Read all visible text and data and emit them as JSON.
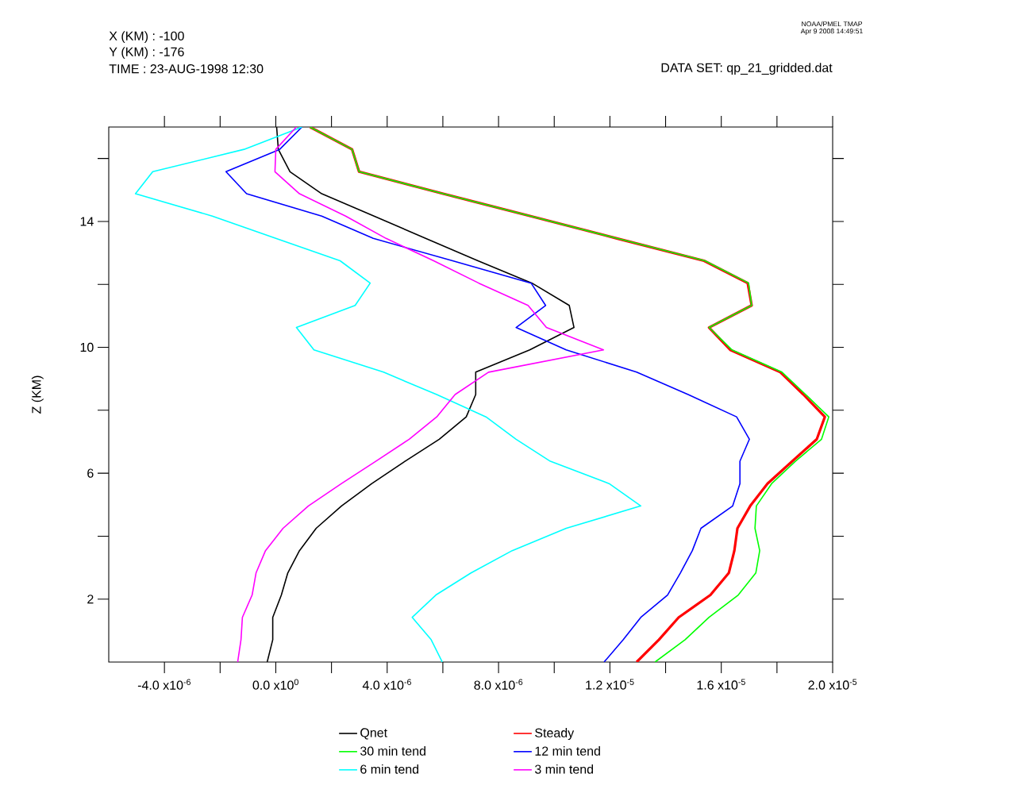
{
  "chart_data": {
    "type": "line",
    "ylabel": "Z (KM)",
    "annotations": [
      "X (KM) : -100",
      "Y (KM) : -176",
      "TIME : 23-AUG-1998 12:30",
      "DATA SET: qp_21_gridded.dat",
      "NOAA/PMEL TMAP",
      "Apr 9 2008 14:49:51"
    ],
    "xlim": [
      -6e-06,
      2e-05
    ],
    "ylim": [
      0,
      17
    ],
    "xticks": [
      {
        "value": -4e-06,
        "label": "-4.0 x10$^{-6}$"
      },
      {
        "value": -2e-06,
        "label": null
      },
      {
        "value": 0,
        "label": "0.0 x10$^{0}$"
      },
      {
        "value": 2e-06,
        "label": null
      },
      {
        "value": 4e-06,
        "label": "4.0 x10$^{-6}$"
      },
      {
        "value": 6e-06,
        "label": null
      },
      {
        "value": 8e-06,
        "label": "8.0 x10$^{-6}$"
      },
      {
        "value": 1e-05,
        "label": null
      },
      {
        "value": 1.2e-05,
        "label": "1.2 x10$^{-5}$"
      },
      {
        "value": 1.4e-05,
        "label": null
      },
      {
        "value": 1.6e-05,
        "label": "1.6 x10$^{-5}$"
      },
      {
        "value": 1.8e-05,
        "label": null
      },
      {
        "value": 2e-05,
        "label": "2.0 x10$^{-5}$"
      }
    ],
    "yticks": [
      2,
      {
        "value": 4,
        "label": null
      },
      6,
      {
        "value": 8,
        "label": null
      },
      10,
      {
        "value": 12,
        "label": null
      },
      14,
      {
        "value": 16,
        "label": null
      }
    ],
    "legend": "bottom",
    "line_style": "solid",
    "series": [
      {
        "name": "Qnet",
        "color": "#000000",
        "x": [
          -3.1e-07,
          -1.1e-07,
          -1.1e-07,
          2e-07,
          4.3e-07,
          8.5e-07,
          1.45e-06,
          2.36e-06,
          3.45e-06,
          4.64e-06,
          5.87e-06,
          6.84e-06,
          7.18e-06,
          7.18e-06,
          9.12e-06,
          1.071e-05,
          1.054e-05,
          9.2e-06,
          7.26e-06,
          5.38e-06,
          3.53e-06,
          1.65e-06,
          5.1e-07,
          9e-08,
          3e-08
        ],
        "values": [
          0,
          0.71,
          1.42,
          2.13,
          2.83,
          3.54,
          4.25,
          4.96,
          5.67,
          6.38,
          7.08,
          7.79,
          8.5,
          9.21,
          9.92,
          10.63,
          11.33,
          12.04,
          12.75,
          13.46,
          14.17,
          14.88,
          15.58,
          16.29,
          17.0
        ]
      },
      {
        "name": "Steady",
        "color": "#ff0000",
        "x": [
          1.296e-05,
          1.376e-05,
          1.447e-05,
          1.561e-05,
          1.627e-05,
          1.647e-05,
          1.658e-05,
          1.704e-05,
          1.766e-05,
          1.855e-05,
          1.943e-05,
          1.972e-05,
          1.895e-05,
          1.812e-05,
          1.632e-05,
          1.556e-05,
          1.709e-05,
          1.695e-05,
          1.538e-05,
          1.225e-05,
          9.15e-06,
          6.01e-06,
          2.99e-06,
          2.74e-06,
          1.23e-06
        ],
        "values": [
          0,
          0.71,
          1.42,
          2.13,
          2.83,
          3.54,
          4.25,
          4.96,
          5.67,
          6.38,
          7.08,
          7.79,
          8.5,
          9.21,
          9.92,
          10.63,
          11.33,
          12.04,
          12.75,
          13.46,
          14.17,
          14.88,
          15.58,
          16.29,
          17.0
        ]
      },
      {
        "name": "30 min tend",
        "color": "#00ff00",
        "x": [
          1.362e-05,
          1.47e-05,
          1.556e-05,
          1.661e-05,
          1.724e-05,
          1.738e-05,
          1.721e-05,
          1.726e-05,
          1.781e-05,
          1.866e-05,
          1.96e-05,
          1.986e-05,
          1.903e-05,
          1.818e-05,
          1.638e-05,
          1.556e-05,
          1.709e-05,
          1.698e-05,
          1.541e-05,
          1.225e-05,
          9.15e-06,
          6.01e-06,
          2.99e-06,
          2.74e-06,
          1.23e-06
        ],
        "values": [
          0,
          0.71,
          1.42,
          2.13,
          2.83,
          3.54,
          4.25,
          4.96,
          5.67,
          6.38,
          7.08,
          7.79,
          8.5,
          9.21,
          9.92,
          10.63,
          11.33,
          12.04,
          12.75,
          13.46,
          14.17,
          14.88,
          15.58,
          16.29,
          17.0
        ]
      },
      {
        "name": "12 min tend",
        "color": "#0000ff",
        "x": [
          1.179e-05,
          1.248e-05,
          1.311e-05,
          1.407e-05,
          1.453e-05,
          1.496e-05,
          1.527e-05,
          1.641e-05,
          1.667e-05,
          1.667e-05,
          1.701e-05,
          1.655e-05,
          1.481e-05,
          1.296e-05,
          1.043e-05,
          8.63e-06,
          9.69e-06,
          9.17e-06,
          6.35e-06,
          3.5e-06,
          1.65e-06,
          -1.05e-06,
          -1.79e-06,
          1.4e-07,
          9.4e-07
        ],
        "values": [
          0,
          0.71,
          1.42,
          2.13,
          2.83,
          3.54,
          4.25,
          4.96,
          5.67,
          6.38,
          7.08,
          7.79,
          8.5,
          9.21,
          9.92,
          10.63,
          11.33,
          12.04,
          12.75,
          13.46,
          14.17,
          14.88,
          15.58,
          16.29,
          17.0
        ]
      },
      {
        "name": "6 min tend",
        "color": "#00ffff",
        "x": [
          5.98e-06,
          5.58e-06,
          4.9e-06,
          5.75e-06,
          7.01e-06,
          8.49e-06,
          1.043e-05,
          1.311e-05,
          1.197e-05,
          9.86e-06,
          8.63e-06,
          7.55e-06,
          5.78e-06,
          3.87e-06,
          1.37e-06,
          7.4e-07,
          2.85e-06,
          3.39e-06,
          2.31e-06,
          0,
          -2.28e-06,
          -5.04e-06,
          -4.42e-06,
          -1.14e-06,
          9.4e-07
        ],
        "values": [
          0,
          0.71,
          1.42,
          2.13,
          2.83,
          3.54,
          4.25,
          4.96,
          5.67,
          6.38,
          7.08,
          7.79,
          8.5,
          9.21,
          9.92,
          10.63,
          11.33,
          12.04,
          12.75,
          13.46,
          14.17,
          14.88,
          15.58,
          16.29,
          17.0
        ]
      },
      {
        "name": "3 min tend",
        "color": "#ff00ff",
        "x": [
          -1.37e-06,
          -1.25e-06,
          -1.2e-06,
          -8.5e-07,
          -7.1e-07,
          -3.7e-07,
          2.6e-07,
          1.17e-06,
          2.36e-06,
          3.59e-06,
          4.79e-06,
          5.78e-06,
          6.44e-06,
          7.64e-06,
          1.177e-05,
          9.72e-06,
          9.06e-06,
          7.29e-06,
          5.67e-06,
          3.96e-06,
          2.51e-06,
          8.5e-07,
          -3e-08,
          0,
          7.4e-07
        ],
        "values": [
          0,
          0.71,
          1.42,
          2.13,
          2.83,
          3.54,
          4.25,
          4.96,
          5.67,
          6.38,
          7.08,
          7.79,
          8.5,
          9.21,
          9.92,
          10.63,
          11.33,
          12.04,
          12.75,
          13.46,
          14.17,
          14.88,
          15.58,
          16.29,
          17.0
        ]
      }
    ]
  }
}
